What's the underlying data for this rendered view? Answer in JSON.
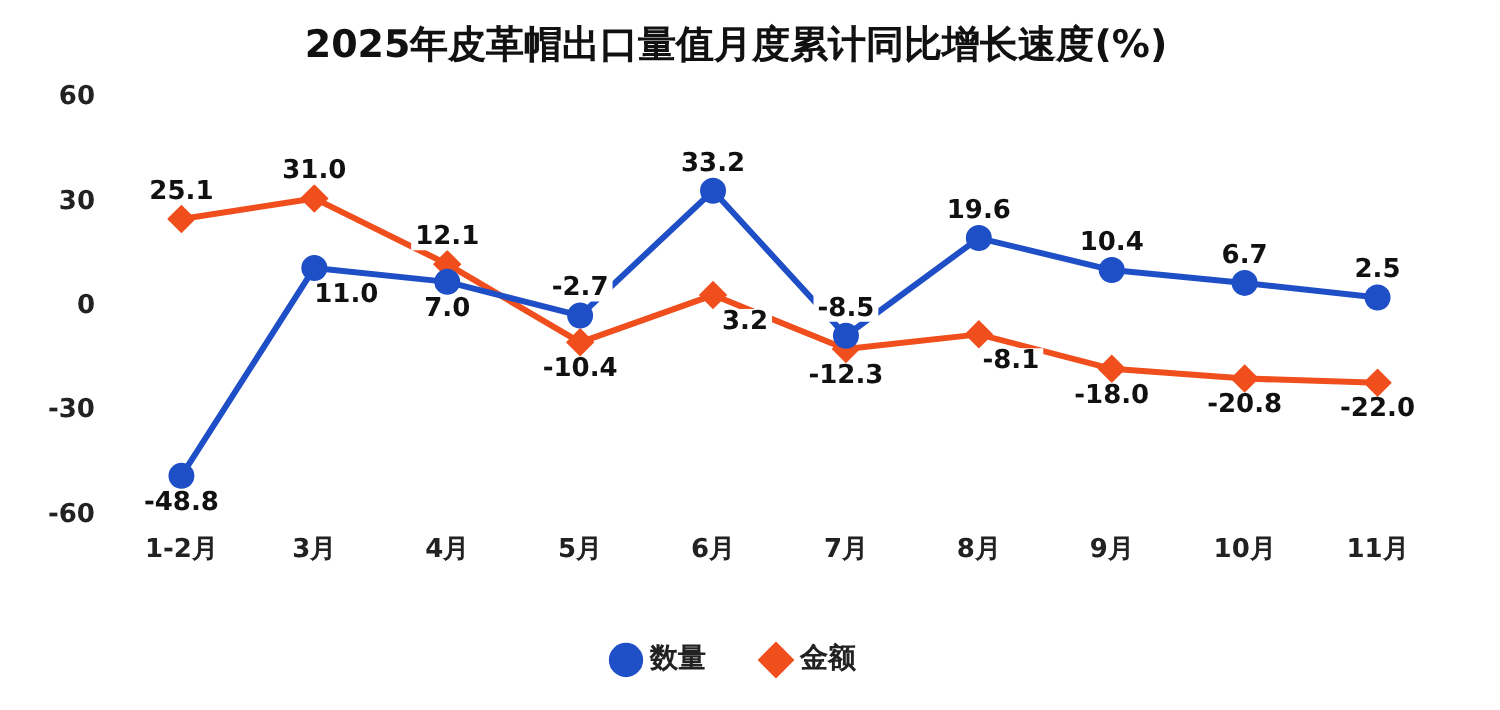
{
  "chart_data": {
    "type": "line",
    "title": "2025年皮革帽出口量值月度累计同比增长速度(%)",
    "categories": [
      "1-2月",
      "3月",
      "4月",
      "5月",
      "6月",
      "7月",
      "8月",
      "9月",
      "10月",
      "11月"
    ],
    "series": [
      {
        "name": "数量",
        "color": "#1f4fc6",
        "marker": "circle",
        "values": [
          -48.8,
          11.0,
          7.0,
          -2.7,
          33.2,
          -8.5,
          19.6,
          10.4,
          6.7,
          2.5
        ],
        "value_labels": [
          "-48.8",
          "11.0",
          "7.0",
          "-2.7",
          "33.2",
          "-8.5",
          "19.6",
          "10.4",
          "6.7",
          "2.5"
        ]
      },
      {
        "name": "金额",
        "color": "#f04e1c",
        "marker": "diamond",
        "values": [
          25.1,
          31.0,
          12.1,
          -10.4,
          3.2,
          -12.3,
          -8.1,
          -18.0,
          -20.8,
          -22.0
        ],
        "value_labels": [
          "25.1",
          "31.0",
          "12.1",
          "-10.4",
          "3.2",
          "-12.3",
          "-8.1",
          "-18.0",
          "-20.8",
          "-22.0"
        ]
      }
    ],
    "ylim": [
      -60,
      60
    ],
    "yticks": [
      -60,
      -30,
      0,
      30,
      60
    ],
    "legend": "bottom",
    "line_style": "solid"
  }
}
